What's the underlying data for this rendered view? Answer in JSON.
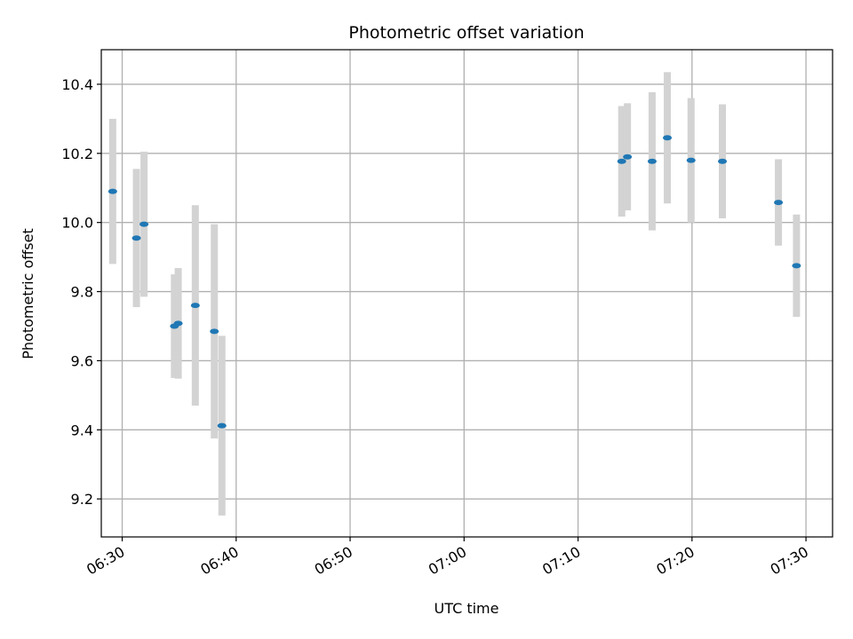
{
  "chart_data": {
    "type": "scatter",
    "title": "Photometric offset variation",
    "xlabel": "UTC time",
    "ylabel": "Photometric offset",
    "x_ticks": [
      "06:30",
      "06:40",
      "06:50",
      "07:00",
      "07:10",
      "07:20",
      "07:30"
    ],
    "y_ticks": [
      "9.2",
      "9.4",
      "9.6",
      "9.8",
      "10.0",
      "10.2",
      "10.4"
    ],
    "xlim": [
      "06:28:10",
      "07:32:20"
    ],
    "ylim": [
      9.09,
      10.5
    ],
    "grid": true,
    "colors": {
      "point": "#1f77b4",
      "errorbar": "#d3d3d3",
      "grid": "#b0b0b0"
    },
    "points": [
      {
        "x": "06:29:10",
        "y": 10.09,
        "err": 0.21
      },
      {
        "x": "06:31:15",
        "y": 9.955,
        "err": 0.2
      },
      {
        "x": "06:31:55",
        "y": 9.995,
        "err": 0.21
      },
      {
        "x": "06:34:35",
        "y": 9.7,
        "err": 0.15
      },
      {
        "x": "06:34:55",
        "y": 9.708,
        "err": 0.16
      },
      {
        "x": "06:36:25",
        "y": 9.76,
        "err": 0.29
      },
      {
        "x": "06:38:05",
        "y": 9.685,
        "err": 0.31
      },
      {
        "x": "06:38:45",
        "y": 9.412,
        "err": 0.26
      },
      {
        "x": "07:13:50",
        "y": 10.177,
        "err": 0.16
      },
      {
        "x": "07:14:20",
        "y": 10.19,
        "err": 0.155
      },
      {
        "x": "07:16:30",
        "y": 10.177,
        "err": 0.2
      },
      {
        "x": "07:17:50",
        "y": 10.245,
        "err": 0.19
      },
      {
        "x": "07:19:55",
        "y": 10.18,
        "err": 0.18
      },
      {
        "x": "07:22:40",
        "y": 10.177,
        "err": 0.165
      },
      {
        "x": "07:27:35",
        "y": 10.058,
        "err": 0.125
      },
      {
        "x": "07:29:10",
        "y": 9.875,
        "err": 0.148
      }
    ]
  }
}
